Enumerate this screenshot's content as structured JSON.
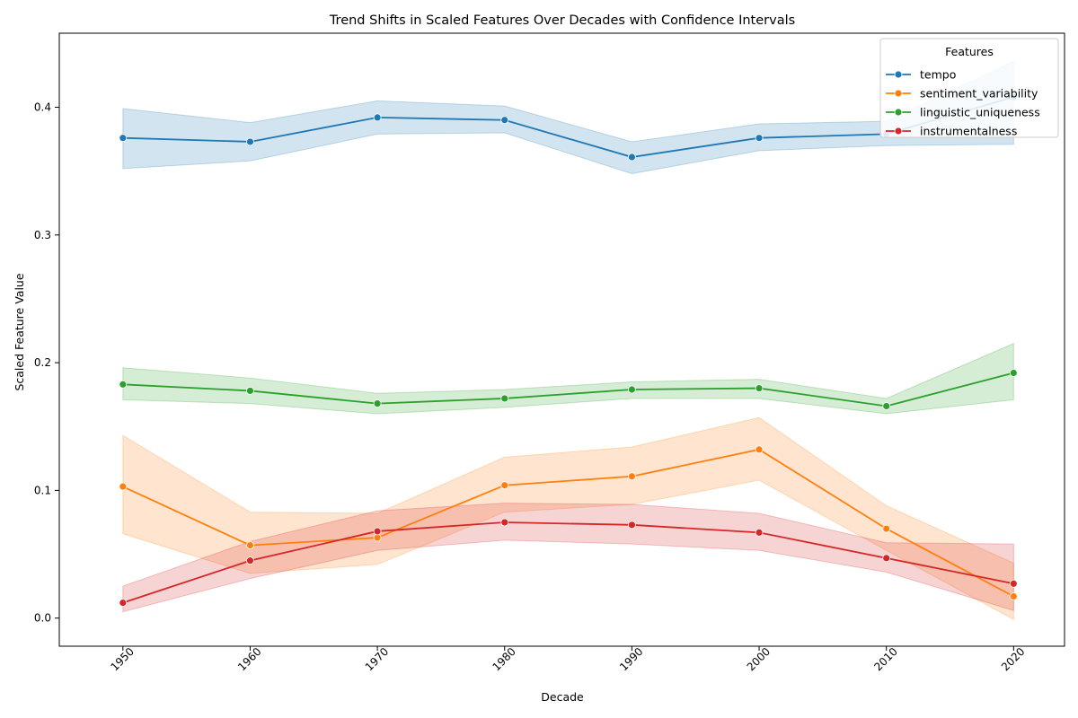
{
  "chart_data": {
    "type": "line",
    "title": "Trend Shifts in Scaled Features Over Decades with Confidence Intervals",
    "xlabel": "Decade",
    "ylabel": "Scaled Feature Value",
    "x": [
      1950,
      1960,
      1970,
      1980,
      1990,
      2000,
      2010,
      2020
    ],
    "xlim": [
      1945,
      2024
    ],
    "ylim": [
      -0.022,
      0.458
    ],
    "yticks": [
      0.0,
      0.1,
      0.2,
      0.3,
      0.4
    ],
    "ytick_labels": [
      "0.0",
      "0.1",
      "0.2",
      "0.3",
      "0.4"
    ],
    "xtick_labels": [
      "1950",
      "1960",
      "1970",
      "1980",
      "1990",
      "2000",
      "2010",
      "2020"
    ],
    "grid": false,
    "legend": {
      "title": "Features",
      "placement": "top-right"
    },
    "series": [
      {
        "name": "tempo",
        "color": "#1f77b4",
        "values": [
          0.376,
          0.373,
          0.392,
          0.39,
          0.361,
          0.376,
          0.379,
          0.408
        ],
        "lower": [
          0.352,
          0.358,
          0.379,
          0.38,
          0.348,
          0.366,
          0.37,
          0.371
        ],
        "upper": [
          0.399,
          0.388,
          0.405,
          0.401,
          0.373,
          0.387,
          0.389,
          0.436
        ]
      },
      {
        "name": "sentiment_variability",
        "color": "#ff7f0e",
        "values": [
          0.103,
          0.057,
          0.063,
          0.104,
          0.111,
          0.132,
          0.07,
          0.017
        ],
        "lower": [
          0.066,
          0.035,
          0.042,
          0.083,
          0.089,
          0.108,
          0.053,
          -0.001
        ],
        "upper": [
          0.143,
          0.083,
          0.082,
          0.126,
          0.134,
          0.157,
          0.088,
          0.043
        ]
      },
      {
        "name": "linguistic_uniqueness",
        "color": "#2ca02c",
        "values": [
          0.183,
          0.178,
          0.168,
          0.172,
          0.179,
          0.18,
          0.166,
          0.192
        ],
        "lower": [
          0.171,
          0.168,
          0.16,
          0.165,
          0.172,
          0.172,
          0.16,
          0.171
        ],
        "upper": [
          0.196,
          0.188,
          0.176,
          0.179,
          0.185,
          0.187,
          0.172,
          0.215
        ]
      },
      {
        "name": "instrumentalness",
        "color": "#d62728",
        "values": [
          0.012,
          0.045,
          0.068,
          0.075,
          0.073,
          0.067,
          0.047,
          0.027
        ],
        "lower": [
          0.005,
          0.031,
          0.053,
          0.061,
          0.058,
          0.053,
          0.036,
          0.006
        ],
        "upper": [
          0.025,
          0.06,
          0.084,
          0.09,
          0.089,
          0.082,
          0.059,
          0.058
        ]
      }
    ]
  }
}
